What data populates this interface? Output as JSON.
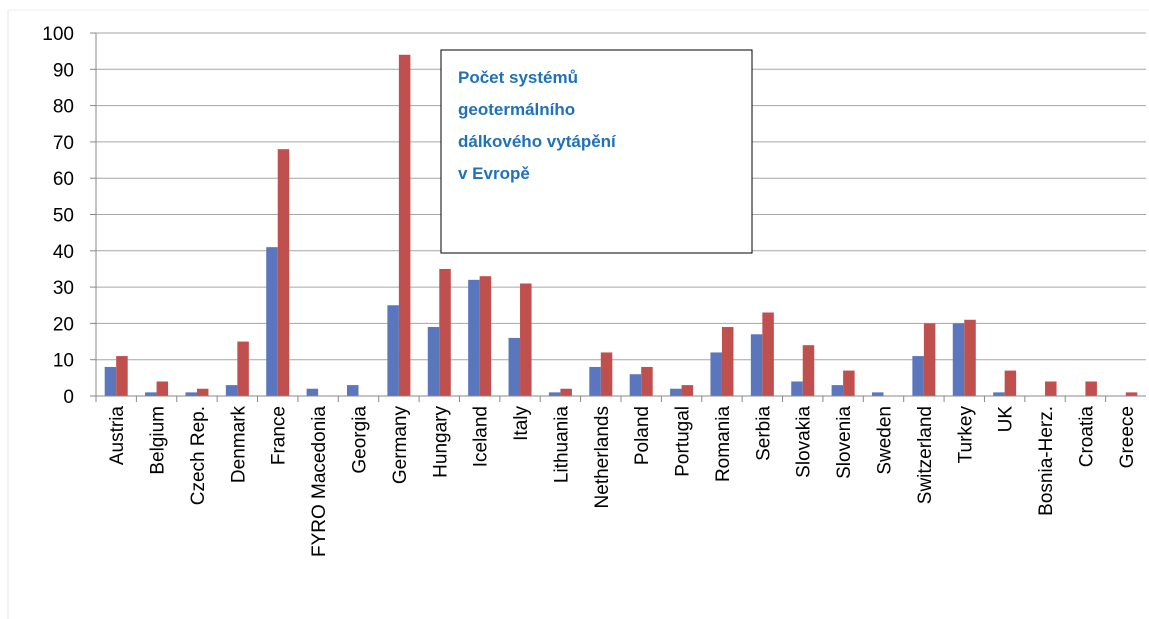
{
  "chart_data": {
    "type": "bar",
    "title_lines": [
      "Počet systémů",
      "geotermálního",
      "dálkového vytápění",
      "v Evropě"
    ],
    "categories": [
      "Austria",
      "Belgium",
      "Czech Rep.",
      "Denmark",
      "France",
      "FYRO Macedonia",
      "Georgia",
      "Germany",
      "Hungary",
      "Iceland",
      "Italy",
      "Lithuania",
      "Netherlands",
      "Poland",
      "Portugal",
      "Romania",
      "Serbia",
      "Slovakia",
      "Slovenia",
      "Sweden",
      "Switzerland",
      "Turkey",
      "UK",
      "Bosnia-Herz.",
      "Croatia",
      "Greece"
    ],
    "series": [
      {
        "color": "#5a76bd",
        "values": [
          8,
          1,
          1,
          3,
          41,
          2,
          3,
          25,
          19,
          32,
          16,
          1,
          8,
          6,
          2,
          12,
          17,
          4,
          3,
          1,
          11,
          20,
          1,
          0,
          0,
          0
        ]
      },
      {
        "color": "#c0504d",
        "values": [
          11,
          4,
          2,
          15,
          68,
          0,
          0,
          94,
          35,
          33,
          31,
          2,
          12,
          8,
          3,
          19,
          23,
          14,
          7,
          0,
          20,
          21,
          7,
          4,
          4,
          1
        ]
      }
    ],
    "ylim": [
      0,
      100
    ],
    "yticks": [
      0,
      10,
      20,
      30,
      40,
      50,
      60,
      70,
      80,
      90,
      100
    ],
    "grid": true
  }
}
